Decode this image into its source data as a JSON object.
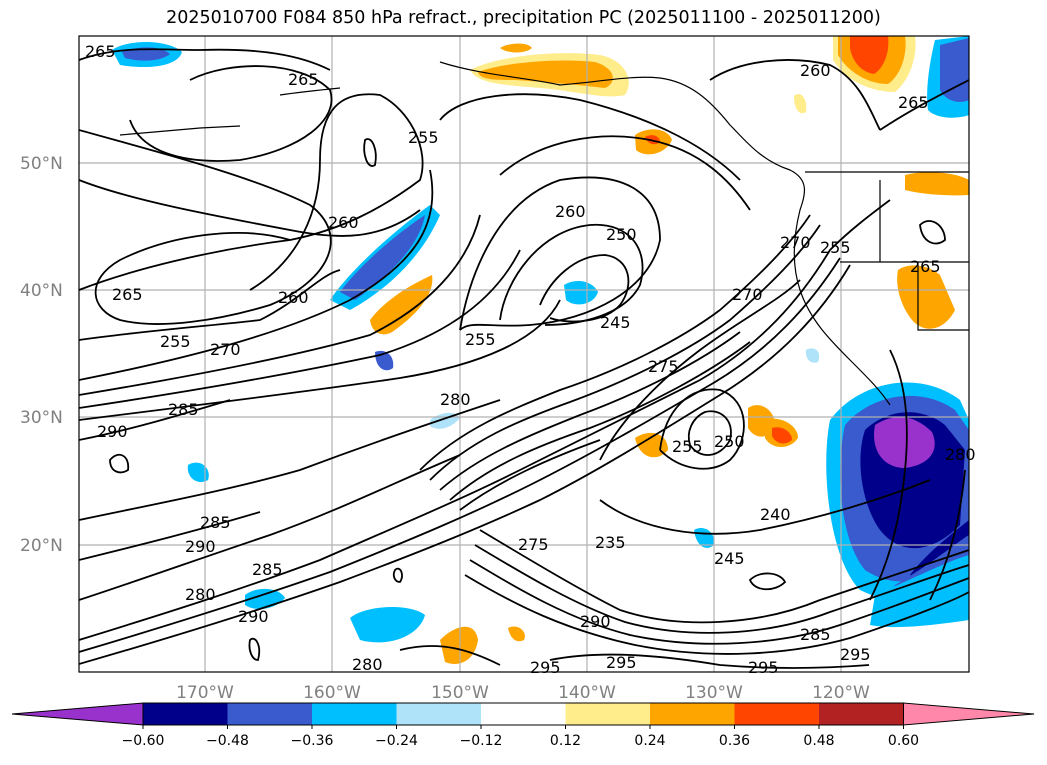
{
  "title": "2025010700 F084 850 hPa refract., precipitation PC (2025011100 - 2025011200)",
  "latitude_labels": [
    "50°N",
    "40°N",
    "30°N",
    "20°N"
  ],
  "longitude_labels": [
    "170°W",
    "160°W",
    "150°W",
    "140°W",
    "130°W",
    "120°W"
  ],
  "contour_labels": [
    "265",
    "265",
    "265",
    "265",
    "260",
    "260",
    "260",
    "255",
    "255",
    "255",
    "250",
    "250",
    "245",
    "245",
    "240",
    "235",
    "255",
    "255",
    "270",
    "270",
    "275",
    "275",
    "280",
    "280",
    "280",
    "285",
    "285",
    "285",
    "285",
    "290",
    "290",
    "290",
    "290",
    "295",
    "295",
    "295",
    "295",
    "260",
    "265",
    "280",
    "270"
  ],
  "colorbar": {
    "colors": [
      "#9932cc",
      "#00008b",
      "#3a5bcd",
      "#00bfff",
      "#aee3fa",
      "#ffffff",
      "#ffec8b",
      "#ffa500",
      "#ff4500",
      "#b22222",
      "#ff88aa"
    ],
    "tick_labels": [
      "−0.60",
      "−0.48",
      "−0.36",
      "−0.24",
      "−0.12",
      "0.12",
      "0.24",
      "0.36",
      "0.48",
      "0.60"
    ]
  },
  "icons": [
    "coastline",
    "state-borders",
    "contour-lines",
    "precip-shading"
  ]
}
